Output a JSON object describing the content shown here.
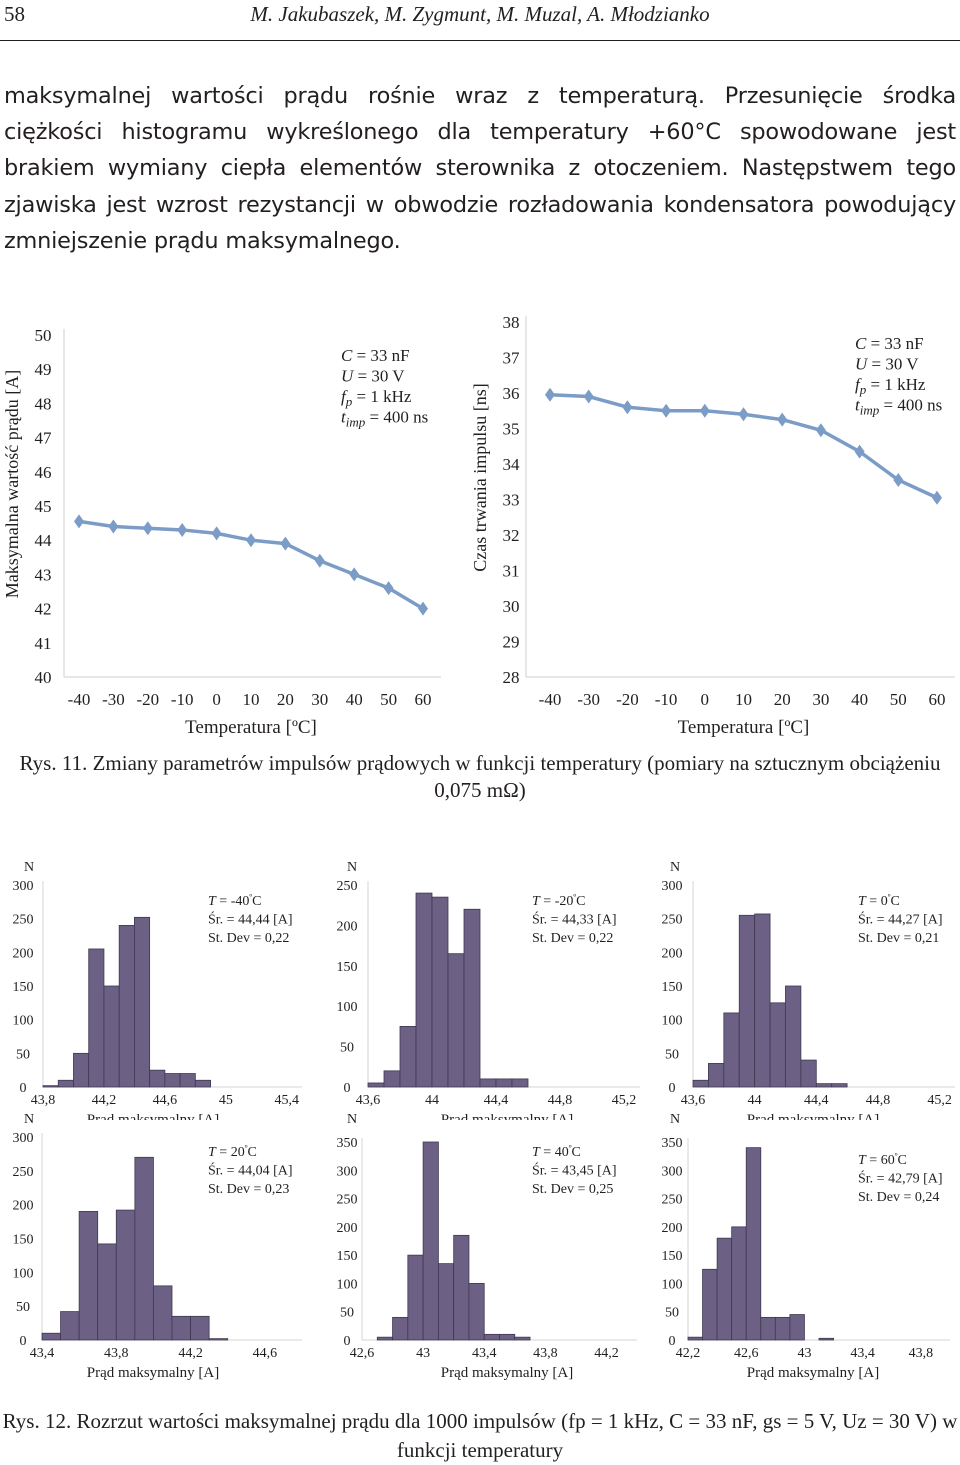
{
  "header": {
    "page_number": "58",
    "authors": "M. Jakubaszek, M. Zygmunt, M. Muzal, A. Młodzianko"
  },
  "body": {
    "paragraph": "maksymalnej wartości prądu rośnie wraz z temperaturą. Przesunięcie środka ciężkości histogramu wykreślonego dla temperatury +60°C spowodowane jest brakiem wymiany ciepła elementów sterownika z otoczeniem. Następstwem tego zjawiska jest wzrost rezystancji w obwodzie rozładowania kondensatora powodujący zmniejszenie prądu maksymalnego."
  },
  "figure11": {
    "caption": "Rys. 11. Zmiany parametrów impulsów prądowych w funkcji temperatury (pomiary na sztucznym obciążeniu 0,075 mΩ)",
    "params": {
      "C": "C = 33 nF",
      "U": "U = 30 V",
      "fp": "fp = 1 kHz",
      "timp": "timp = 400 ns"
    }
  },
  "figure12": {
    "caption": "Rys. 12. Rozrzut wartości maksymalnej prądu dla 1000 impulsów (fp = 1 kHz, C = 33 nF, gs = 5 V, Uz = 30 V) w funkcji temperatury"
  },
  "chart_data": [
    {
      "type": "line",
      "title": "",
      "xlabel": "Temperatura [ºC]",
      "ylabel": "Maksymalna wartość prądu [A]",
      "x": [
        -40,
        -30,
        -20,
        -10,
        0,
        10,
        20,
        30,
        40,
        50,
        60
      ],
      "values": [
        44.55,
        44.4,
        44.35,
        44.3,
        44.2,
        44.0,
        43.9,
        43.4,
        43.0,
        42.6,
        42.0
      ],
      "xticks": [
        "-40",
        "-30",
        "-20",
        "-10",
        "0",
        "10",
        "20",
        "30",
        "40",
        "50",
        "60"
      ],
      "yticks": [
        "40",
        "41",
        "42",
        "43",
        "44",
        "45",
        "46",
        "47",
        "48",
        "49",
        "50"
      ],
      "ylim": [
        40,
        50
      ],
      "color": "#7a9cc6",
      "legend": [
        "C = 33 nF",
        "U = 30 V",
        "fp = 1 kHz",
        "timp = 400 ns"
      ]
    },
    {
      "type": "line",
      "title": "",
      "xlabel": "Temperatura [ºC]",
      "ylabel": "Czas trwania impulsu [ns]",
      "x": [
        -40,
        -30,
        -20,
        -10,
        0,
        10,
        20,
        30,
        40,
        50,
        60
      ],
      "values": [
        35.95,
        35.9,
        35.6,
        35.5,
        35.5,
        35.4,
        35.25,
        34.95,
        34.35,
        33.55,
        33.05
      ],
      "xticks": [
        "-40",
        "-30",
        "-20",
        "-10",
        "0",
        "10",
        "20",
        "30",
        "40",
        "50",
        "60"
      ],
      "yticks": [
        "28",
        "29",
        "30",
        "31",
        "32",
        "33",
        "34",
        "35",
        "36",
        "37",
        "38"
      ],
      "ylim": [
        28,
        38
      ],
      "color": "#7a9cc6",
      "legend": [
        "C = 33 nF",
        "U = 30 V",
        "fp = 1 kHz",
        "timp = 400 ns"
      ]
    },
    {
      "type": "bar",
      "subtitle_T": "T = -40ºC",
      "mean": "Śr. = 44,44 [A]",
      "stdev": "St. Dev = 0,22",
      "ylabel": "N",
      "xlabel": "Prąd maksymalny [A]",
      "xlim": [
        43.8,
        45.5
      ],
      "ylim": [
        0,
        300
      ],
      "bin_width": 0.1,
      "bin_edges": [
        43.8,
        43.9,
        44.0,
        44.1,
        44.2,
        44.3,
        44.4,
        44.5,
        44.6,
        44.7,
        44.8,
        44.9,
        45.0
      ],
      "values": [
        2,
        10,
        50,
        205,
        150,
        240,
        252,
        25,
        20,
        20,
        10,
        0
      ],
      "xticks": [
        "43,8",
        "44,2",
        "44,6",
        "45",
        "45,4"
      ],
      "xtick_values": [
        43.8,
        44.2,
        44.6,
        45.0,
        45.4
      ],
      "yticks": [
        "0",
        "50",
        "100",
        "150",
        "200",
        "250",
        "300"
      ],
      "ytick_values": [
        0,
        50,
        100,
        150,
        200,
        250,
        300
      ],
      "color": "#6c6185"
    },
    {
      "type": "bar",
      "subtitle_T": "T = -20ºC",
      "mean": "Śr. = 44,33 [A]",
      "stdev": "St. Dev = 0,22",
      "ylabel": "N",
      "xlabel": "Prąd maksymalny [A]",
      "xlim": [
        43.6,
        45.3
      ],
      "ylim": [
        0,
        250
      ],
      "bin_width": 0.1,
      "bin_edges": [
        43.6,
        43.7,
        43.8,
        43.9,
        44.0,
        44.1,
        44.2,
        44.3,
        44.4,
        44.5,
        44.6,
        44.7,
        44.8,
        44.9
      ],
      "values": [
        5,
        20,
        75,
        240,
        235,
        165,
        220,
        10,
        10,
        10,
        0,
        0,
        0
      ],
      "xticks": [
        "43,6",
        "44",
        "44,4",
        "44,8",
        "45,2"
      ],
      "xtick_values": [
        43.6,
        44.0,
        44.4,
        44.8,
        45.2
      ],
      "yticks": [
        "0",
        "50",
        "100",
        "150",
        "200",
        "250"
      ],
      "ytick_values": [
        0,
        50,
        100,
        150,
        200,
        250
      ],
      "color": "#6c6185"
    },
    {
      "type": "bar",
      "subtitle_T": "T = 0ºC",
      "mean": "Śr. = 44,27 [A]",
      "stdev": "St. Dev = 0,21",
      "ylabel": "N",
      "xlabel": "Prąd maksymalny [A]",
      "xlim": [
        43.6,
        45.3
      ],
      "ylim": [
        0,
        300
      ],
      "bin_width": 0.1,
      "bin_edges": [
        43.6,
        43.7,
        43.8,
        43.9,
        44.0,
        44.1,
        44.2,
        44.3,
        44.4,
        44.5,
        44.6,
        44.7,
        44.8,
        44.9
      ],
      "values": [
        10,
        35,
        110,
        255,
        257,
        125,
        150,
        40,
        5,
        5,
        0,
        0,
        0
      ],
      "xticks": [
        "43,6",
        "44",
        "44,4",
        "44,8",
        "45,2"
      ],
      "xtick_values": [
        43.6,
        44.0,
        44.4,
        44.8,
        45.2
      ],
      "yticks": [
        "0",
        "50",
        "100",
        "150",
        "200",
        "250",
        "300"
      ],
      "ytick_values": [
        0,
        50,
        100,
        150,
        200,
        250,
        300
      ],
      "color": "#6c6185"
    },
    {
      "type": "bar",
      "subtitle_T": "T = 20ºC",
      "mean": "Śr. = 44,04 [A]",
      "stdev": "St. Dev = 0,23",
      "ylabel": "N",
      "xlabel": "Prąd maksymalny [A]",
      "xlim": [
        43.4,
        44.8
      ],
      "ylim": [
        0,
        300
      ],
      "bin_width": 0.1,
      "bin_edges": [
        43.4,
        43.5,
        43.6,
        43.7,
        43.8,
        43.9,
        44.0,
        44.1,
        44.2,
        44.3,
        44.4,
        44.5,
        44.6,
        44.7
      ],
      "values": [
        10,
        42,
        190,
        142,
        192,
        270,
        80,
        35,
        35,
        2,
        0,
        0,
        0
      ],
      "xticks": [
        "43,4",
        "43,8",
        "44,2",
        "44,6"
      ],
      "xtick_values": [
        43.4,
        43.8,
        44.2,
        44.6
      ],
      "yticks": [
        "0",
        "50",
        "100",
        "150",
        "200",
        "250",
        "300"
      ],
      "ytick_values": [
        0,
        50,
        100,
        150,
        200,
        250,
        300
      ],
      "color": "#6c6185"
    },
    {
      "type": "bar",
      "subtitle_T": "T = 40ºC",
      "mean": "Śr. = 43,45 [A]",
      "stdev": "St. Dev = 0,25",
      "ylabel": "N",
      "xlabel": "Prąd maksymalny [A]",
      "xlim": [
        42.6,
        44.4
      ],
      "ylim": [
        0,
        350
      ],
      "bin_width": 0.1,
      "bin_edges": [
        42.6,
        42.7,
        42.8,
        42.9,
        43.0,
        43.1,
        43.2,
        43.3,
        43.4,
        43.5,
        43.6,
        43.7,
        43.8,
        43.9
      ],
      "values": [
        0,
        5,
        40,
        150,
        350,
        135,
        185,
        100,
        10,
        10,
        5,
        0,
        0
      ],
      "xticks": [
        "42,6",
        "43",
        "43,4",
        "43,8",
        "44,2"
      ],
      "xtick_values": [
        42.6,
        43.0,
        43.4,
        43.8,
        44.2
      ],
      "yticks": [
        "0",
        "50",
        "100",
        "150",
        "200",
        "250",
        "300",
        "350"
      ],
      "ytick_values": [
        0,
        50,
        100,
        150,
        200,
        250,
        300,
        350
      ],
      "color": "#6c6185"
    },
    {
      "type": "bar",
      "subtitle_T": "T = 60ºC",
      "mean": "Śr. = 42,79 [A]",
      "stdev": "St. Dev = 0,24",
      "ylabel": "N",
      "xlabel": "Prąd maksymalny [A]",
      "xlim": [
        42.2,
        44.0
      ],
      "ylim": [
        0,
        350
      ],
      "bin_width": 0.1,
      "bin_edges": [
        42.2,
        42.3,
        42.4,
        42.5,
        42.6,
        42.7,
        42.8,
        42.9,
        43.0,
        43.1,
        43.2,
        43.3,
        43.4,
        43.5
      ],
      "values": [
        5,
        125,
        180,
        200,
        340,
        40,
        40,
        45,
        0,
        3,
        0,
        0,
        0
      ],
      "xticks": [
        "42,2",
        "42,6",
        "43",
        "43,4",
        "43,8"
      ],
      "xtick_values": [
        42.2,
        42.6,
        43.0,
        43.4,
        43.8
      ],
      "yticks": [
        "0",
        "50",
        "100",
        "150",
        "200",
        "250",
        "300",
        "350"
      ],
      "ytick_values": [
        0,
        50,
        100,
        150,
        200,
        250,
        300,
        350
      ],
      "color": "#6c6185"
    }
  ]
}
